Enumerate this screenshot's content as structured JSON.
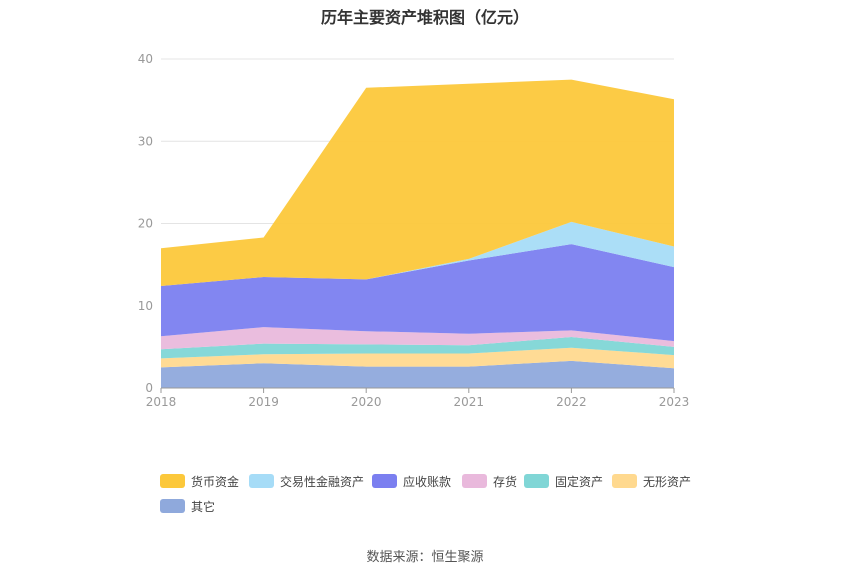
{
  "chart_data": {
    "type": "area",
    "stacked": true,
    "title": "历年主要资产堆积图（亿元）",
    "x": [
      "2018",
      "2019",
      "2020",
      "2021",
      "2022",
      "2023"
    ],
    "ylim": [
      0,
      40
    ],
    "yticks": [
      0,
      10,
      20,
      30,
      40
    ],
    "grid": true,
    "legend_position": "bottom",
    "series": [
      {
        "name": "其它",
        "color": "#8fa9dc",
        "values": [
          2.5,
          3.0,
          2.6,
          2.6,
          3.3,
          2.4
        ]
      },
      {
        "name": "无形资产",
        "color": "#ffd98f",
        "values": [
          1.1,
          1.1,
          1.6,
          1.6,
          1.6,
          1.6
        ]
      },
      {
        "name": "固定资产",
        "color": "#80d6d6",
        "values": [
          1.1,
          1.3,
          1.1,
          1.0,
          1.3,
          1.0
        ]
      },
      {
        "name": "存货",
        "color": "#e9b9dc",
        "values": [
          1.6,
          2.0,
          1.6,
          1.4,
          0.8,
          0.7
        ]
      },
      {
        "name": "应收账款",
        "color": "#7b7ff0",
        "values": [
          6.1,
          6.1,
          6.3,
          8.9,
          10.5,
          9.0
        ]
      },
      {
        "name": "交易性金融资产",
        "color": "#a6dcf7",
        "values": [
          0,
          0,
          0,
          0.2,
          2.7,
          2.5
        ]
      },
      {
        "name": "货币资金",
        "color": "#fcc83b",
        "values": [
          4.6,
          4.8,
          23.3,
          21.3,
          17.3,
          17.9
        ]
      }
    ],
    "legend_order": [
      "货币资金",
      "交易性金融资产",
      "应收账款",
      "存货",
      "固定资产",
      "无形资产",
      "其它"
    ]
  },
  "source_text": "数据来源：恒生聚源"
}
